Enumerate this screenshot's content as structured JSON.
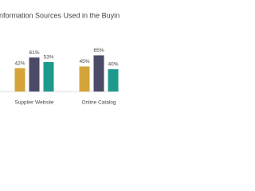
{
  "chart_data": {
    "type": "bar",
    "title": "nformation Sources Used in the Buying C",
    "categories": [
      "Supplier Website",
      "Online Catalog"
    ],
    "series": [
      {
        "color": "#d4a43a",
        "values": [
          42,
          45
        ],
        "value_labels": [
          "42%",
          "45%"
        ]
      },
      {
        "color": "#4b4b68",
        "values": [
          61,
          65
        ],
        "value_labels": [
          "61%",
          "65%"
        ]
      },
      {
        "color": "#1d9a8c",
        "values": [
          53,
          40
        ],
        "value_labels": [
          "53%",
          "40%"
        ]
      }
    ],
    "ylim": [
      0,
      100
    ]
  }
}
